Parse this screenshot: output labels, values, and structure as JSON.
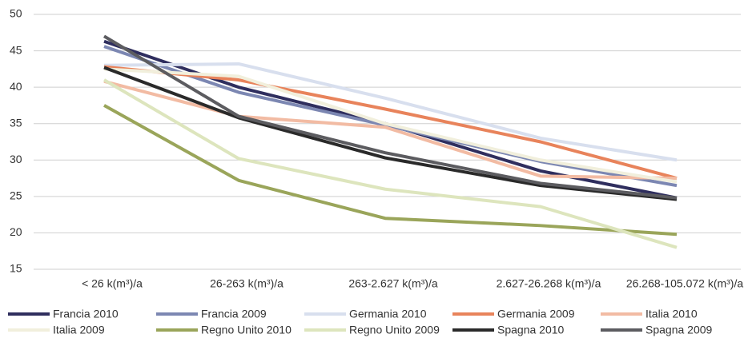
{
  "chart_data": {
    "type": "line",
    "categories": [
      "< 26 k(m³)/a",
      "26-263 k(m³)/a",
      "263-2.627 k(m³)/a",
      "2.627-26.268 k(m³)/a",
      "26.268-105.072 k(m³)/a"
    ],
    "series": [
      {
        "name": "Francia 2010",
        "color": "#2f2e5e",
        "values": [
          46.3,
          40,
          35,
          28.5,
          24.8
        ]
      },
      {
        "name": "Francia 2009",
        "color": "#7c87b2",
        "values": [
          45.6,
          39.3,
          34.8,
          29.8,
          26.5
        ]
      },
      {
        "name": "Germania 2010",
        "color": "#d8dfee",
        "values": [
          43,
          43.2,
          38.5,
          33,
          30
        ]
      },
      {
        "name": "Germania 2009",
        "color": "#e8835b",
        "values": [
          42.8,
          41,
          37,
          32.5,
          27.5
        ]
      },
      {
        "name": "Italia 2010",
        "color": "#f2bba3",
        "values": [
          40.8,
          36,
          34.5,
          27.8,
          27.5
        ]
      },
      {
        "name": "Italia 2009",
        "color": "#f1efdc",
        "values": [
          42.5,
          41.5,
          35,
          30,
          27
        ]
      },
      {
        "name": "Regno Unito 2010",
        "color": "#9aa55a",
        "values": [
          37.5,
          27.2,
          22,
          21,
          19.8
        ]
      },
      {
        "name": "Regno Unito 2009",
        "color": "#dde5bd",
        "values": [
          41,
          30.2,
          26,
          23.6,
          18
        ]
      },
      {
        "name": "Spagna 2010",
        "color": "#2a2a2a",
        "values": [
          42.7,
          35.8,
          30.3,
          26.5,
          24.6
        ]
      },
      {
        "name": "Spagna 2009",
        "color": "#5c5c60",
        "values": [
          47,
          36,
          31,
          26.8,
          24.8
        ]
      }
    ],
    "ylim": [
      15,
      50
    ],
    "yticks": [
      15,
      20,
      25,
      30,
      35,
      40,
      45,
      50
    ],
    "grid": true
  }
}
